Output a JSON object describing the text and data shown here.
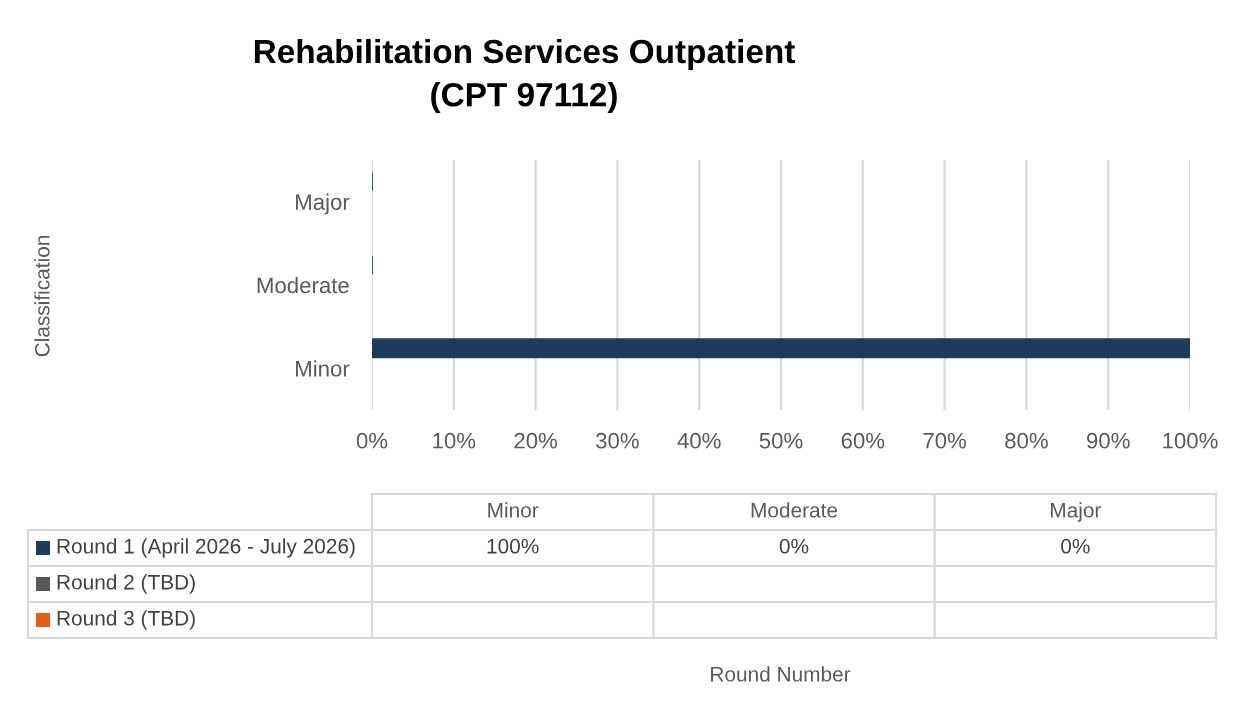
{
  "chart_data": {
    "type": "bar",
    "orientation": "horizontal",
    "title": "Rehabilitation Services Outpatient\n(CPT 97112)",
    "annotations": [
      "Classification",
      "Round Number",
      "100%",
      "0%",
      "0%"
    ],
    "categories": [
      "Major",
      "Moderate",
      "Minor"
    ],
    "series": [
      {
        "name": "Round 1 (April 2026 - July 2026)",
        "color": "#1f3b5a",
        "values": [
          0,
          0,
          100
        ]
      },
      {
        "name": "Round 2 (TBD)",
        "color": "#595959",
        "values": [
          null,
          null,
          null
        ]
      },
      {
        "name": "Round 3 (TBD)",
        "color": "#e0601b",
        "values": [
          null,
          null,
          null
        ]
      }
    ],
    "xlim": [
      0,
      100
    ],
    "xticks": [
      {
        "value": 0,
        "label": "0%"
      },
      {
        "value": 10,
        "label": "10%"
      },
      {
        "value": 20,
        "label": "20%"
      },
      {
        "value": 30,
        "label": "30%"
      },
      {
        "value": 40,
        "label": "40%"
      },
      {
        "value": 50,
        "label": "50%"
      },
      {
        "value": 60,
        "label": "60%"
      },
      {
        "value": 70,
        "label": "70%"
      },
      {
        "value": 80,
        "label": "80%"
      },
      {
        "value": 90,
        "label": "90%"
      },
      {
        "value": 100,
        "label": "100%"
      }
    ],
    "grid": "x",
    "legend": "bottom"
  }
}
